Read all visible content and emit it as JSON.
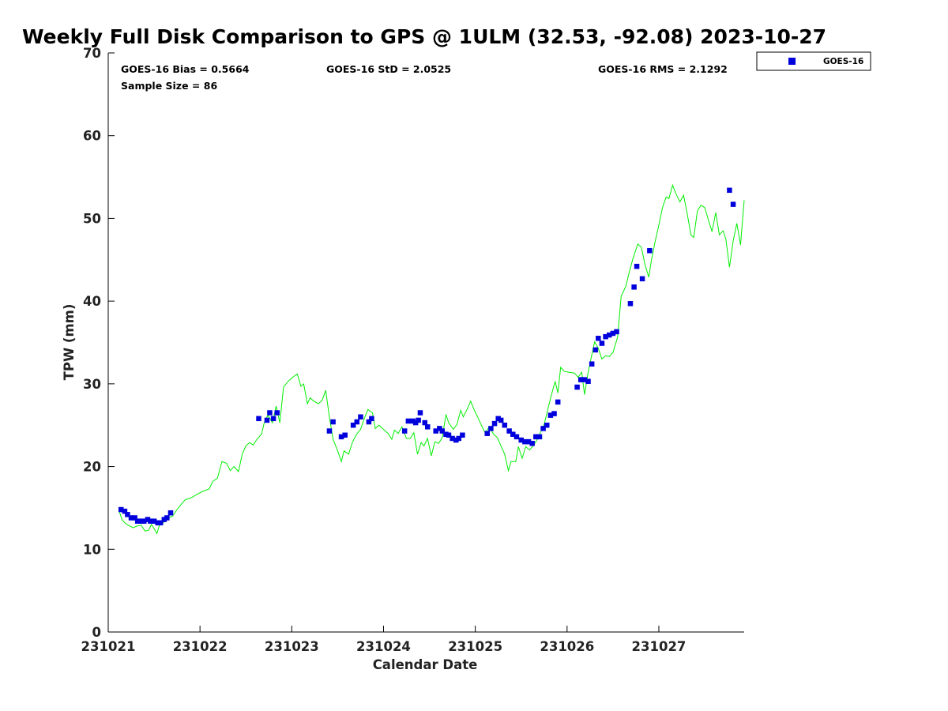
{
  "chart_data": {
    "type": "scatter",
    "title": "Weekly Full Disk Comparison to GPS @ 1ULM (32.53, -92.08) 2023-10-27",
    "xlabel": "Calendar Date",
    "ylabel": "TPW (mm)",
    "xlim": [
      231021.0,
      231027.93
    ],
    "ylim": [
      0,
      70
    ],
    "x_ticks": [
      {
        "value": 231021,
        "label": "231021"
      },
      {
        "value": 231022,
        "label": "231022"
      },
      {
        "value": 231023,
        "label": "231023"
      },
      {
        "value": 231024,
        "label": "231024"
      },
      {
        "value": 231025,
        "label": "231025"
      },
      {
        "value": 231026,
        "label": "231026"
      },
      {
        "value": 231027,
        "label": "231027"
      }
    ],
    "y_ticks": [
      {
        "value": 0,
        "label": "0"
      },
      {
        "value": 10,
        "label": "10"
      },
      {
        "value": 20,
        "label": "20"
      },
      {
        "value": 30,
        "label": "30"
      },
      {
        "value": 40,
        "label": "40"
      },
      {
        "value": 50,
        "label": "50"
      },
      {
        "value": 60,
        "label": "60"
      },
      {
        "value": 70,
        "label": "70"
      }
    ],
    "stats": {
      "bias": "GOES-16 Bias = 0.5664",
      "std": "GOES-16 StD = 2.0525",
      "rms": "GOES-16 RMS = 2.1292",
      "sample_size": "Sample Size = 86"
    },
    "legend": {
      "position": "top-right",
      "entries": [
        {
          "name": "GOES-16",
          "color": "#0000dd",
          "marker": "square"
        }
      ]
    },
    "grid": false,
    "series": [
      {
        "name": "GOES-16",
        "kind": "scatter",
        "color": "#0000dd",
        "points": [
          [
            231021.14,
            14.8
          ],
          [
            231021.18,
            14.6
          ],
          [
            231021.21,
            14.2
          ],
          [
            231021.25,
            13.8
          ],
          [
            231021.29,
            13.8
          ],
          [
            231021.32,
            13.4
          ],
          [
            231021.36,
            13.4
          ],
          [
            231021.39,
            13.4
          ],
          [
            231021.43,
            13.6
          ],
          [
            231021.46,
            13.4
          ],
          [
            231021.5,
            13.4
          ],
          [
            231021.54,
            13.2
          ],
          [
            231021.57,
            13.2
          ],
          [
            231021.61,
            13.6
          ],
          [
            231021.64,
            13.8
          ],
          [
            231021.68,
            14.4
          ],
          [
            231022.64,
            25.8
          ],
          [
            231022.73,
            25.6
          ],
          [
            231022.76,
            26.5
          ],
          [
            231022.8,
            25.8
          ],
          [
            231022.84,
            26.5
          ],
          [
            231023.41,
            24.3
          ],
          [
            231023.45,
            25.4
          ],
          [
            231023.54,
            23.6
          ],
          [
            231023.58,
            23.8
          ],
          [
            231023.67,
            25.0
          ],
          [
            231023.71,
            25.4
          ],
          [
            231023.75,
            26.0
          ],
          [
            231023.84,
            25.4
          ],
          [
            231023.87,
            25.8
          ],
          [
            231024.23,
            24.3
          ],
          [
            231024.27,
            25.5
          ],
          [
            231024.32,
            25.5
          ],
          [
            231024.35,
            25.3
          ],
          [
            231024.38,
            25.6
          ],
          [
            231024.4,
            26.5
          ],
          [
            231024.45,
            25.3
          ],
          [
            231024.48,
            24.8
          ],
          [
            231024.57,
            24.3
          ],
          [
            231024.61,
            24.6
          ],
          [
            231024.64,
            24.3
          ],
          [
            231024.68,
            23.9
          ],
          [
            231024.71,
            23.8
          ],
          [
            231024.75,
            23.4
          ],
          [
            231024.79,
            23.2
          ],
          [
            231024.82,
            23.4
          ],
          [
            231024.86,
            23.8
          ],
          [
            231025.13,
            24.0
          ],
          [
            231025.17,
            24.6
          ],
          [
            231025.21,
            25.2
          ],
          [
            231025.25,
            25.8
          ],
          [
            231025.28,
            25.6
          ],
          [
            231025.32,
            25.0
          ],
          [
            231025.37,
            24.3
          ],
          [
            231025.41,
            23.9
          ],
          [
            231025.45,
            23.6
          ],
          [
            231025.5,
            23.2
          ],
          [
            231025.54,
            23.0
          ],
          [
            231025.58,
            23.0
          ],
          [
            231025.62,
            22.8
          ],
          [
            231025.66,
            23.6
          ],
          [
            231025.7,
            23.6
          ],
          [
            231025.74,
            24.6
          ],
          [
            231025.78,
            25.0
          ],
          [
            231025.82,
            26.2
          ],
          [
            231025.86,
            26.4
          ],
          [
            231025.9,
            27.8
          ],
          [
            231026.11,
            29.6
          ],
          [
            231026.15,
            30.5
          ],
          [
            231026.19,
            30.5
          ],
          [
            231026.23,
            30.3
          ],
          [
            231026.27,
            32.4
          ],
          [
            231026.31,
            34.1
          ],
          [
            231026.34,
            35.5
          ],
          [
            231026.38,
            34.9
          ],
          [
            231026.42,
            35.7
          ],
          [
            231026.46,
            35.9
          ],
          [
            231026.5,
            36.1
          ],
          [
            231026.54,
            36.3
          ],
          [
            231026.69,
            39.7
          ],
          [
            231026.73,
            41.7
          ],
          [
            231026.76,
            44.2
          ],
          [
            231026.82,
            42.7
          ],
          [
            231026.9,
            46.1
          ],
          [
            231027.77,
            53.4
          ],
          [
            231027.81,
            51.7
          ]
        ]
      },
      {
        "name": "GPS",
        "kind": "line",
        "color": "#00ee00",
        "points": [
          [
            231021.12,
            14.6
          ],
          [
            231021.15,
            13.6
          ],
          [
            231021.18,
            13.2
          ],
          [
            231021.22,
            12.9
          ],
          [
            231021.27,
            12.6
          ],
          [
            231021.31,
            12.8
          ],
          [
            231021.36,
            12.9
          ],
          [
            231021.4,
            12.2
          ],
          [
            231021.44,
            12.3
          ],
          [
            231021.47,
            13.0
          ],
          [
            231021.5,
            12.5
          ],
          [
            231021.53,
            11.9
          ],
          [
            231021.56,
            13.0
          ],
          [
            231021.6,
            13.2
          ],
          [
            231021.65,
            13.8
          ],
          [
            231021.7,
            14.0
          ],
          [
            231021.75,
            14.8
          ],
          [
            231021.8,
            15.5
          ],
          [
            231021.84,
            16.0
          ],
          [
            231021.9,
            16.2
          ],
          [
            231021.96,
            16.6
          ],
          [
            231022.03,
            17.0
          ],
          [
            231022.1,
            17.3
          ],
          [
            231022.14,
            18.2
          ],
          [
            231022.19,
            18.6
          ],
          [
            231022.24,
            20.6
          ],
          [
            231022.29,
            20.4
          ],
          [
            231022.33,
            19.5
          ],
          [
            231022.37,
            20.0
          ],
          [
            231022.42,
            19.4
          ],
          [
            231022.46,
            21.5
          ],
          [
            231022.5,
            22.5
          ],
          [
            231022.54,
            22.9
          ],
          [
            231022.58,
            22.6
          ],
          [
            231022.62,
            23.3
          ],
          [
            231022.67,
            23.9
          ],
          [
            231022.7,
            25.3
          ],
          [
            231022.74,
            26.2
          ],
          [
            231022.79,
            25.3
          ],
          [
            231022.83,
            27.3
          ],
          [
            231022.87,
            25.3
          ],
          [
            231022.91,
            29.6
          ],
          [
            231022.96,
            30.3
          ],
          [
            231023.01,
            30.8
          ],
          [
            231023.06,
            31.2
          ],
          [
            231023.1,
            29.7
          ],
          [
            231023.13,
            30.0
          ],
          [
            231023.17,
            27.6
          ],
          [
            231023.2,
            28.3
          ],
          [
            231023.24,
            27.9
          ],
          [
            231023.29,
            27.6
          ],
          [
            231023.33,
            28.0
          ],
          [
            231023.37,
            29.2
          ],
          [
            231023.41,
            26.0
          ],
          [
            231023.45,
            23.3
          ],
          [
            231023.5,
            21.9
          ],
          [
            231023.54,
            20.6
          ],
          [
            231023.57,
            21.9
          ],
          [
            231023.62,
            21.5
          ],
          [
            231023.66,
            22.9
          ],
          [
            231023.7,
            23.8
          ],
          [
            231023.75,
            24.5
          ],
          [
            231023.79,
            25.8
          ],
          [
            231023.83,
            26.9
          ],
          [
            231023.88,
            26.5
          ],
          [
            231023.91,
            24.6
          ],
          [
            231023.95,
            25.0
          ],
          [
            231024.0,
            24.5
          ],
          [
            231024.05,
            24.0
          ],
          [
            231024.09,
            23.3
          ],
          [
            231024.12,
            24.4
          ],
          [
            231024.16,
            24.0
          ],
          [
            231024.2,
            24.8
          ],
          [
            231024.25,
            23.4
          ],
          [
            231024.29,
            23.4
          ],
          [
            231024.33,
            24.1
          ],
          [
            231024.37,
            21.5
          ],
          [
            231024.41,
            22.9
          ],
          [
            231024.44,
            22.5
          ],
          [
            231024.48,
            23.4
          ],
          [
            231024.52,
            21.3
          ],
          [
            231024.56,
            23.0
          ],
          [
            231024.6,
            22.8
          ],
          [
            231024.64,
            23.5
          ],
          [
            231024.68,
            26.3
          ],
          [
            231024.71,
            25.3
          ],
          [
            231024.76,
            24.5
          ],
          [
            231024.8,
            25.1
          ],
          [
            231024.84,
            26.8
          ],
          [
            231024.87,
            26.0
          ],
          [
            231024.91,
            26.9
          ],
          [
            231024.95,
            27.9
          ],
          [
            231024.99,
            26.8
          ],
          [
            231025.03,
            25.9
          ],
          [
            231025.07,
            24.9
          ],
          [
            231025.11,
            24.0
          ],
          [
            231025.15,
            24.8
          ],
          [
            231025.2,
            23.9
          ],
          [
            231025.24,
            23.5
          ],
          [
            231025.28,
            22.5
          ],
          [
            231025.32,
            21.5
          ],
          [
            231025.36,
            19.5
          ],
          [
            231025.39,
            20.6
          ],
          [
            231025.44,
            20.6
          ],
          [
            231025.47,
            22.4
          ],
          [
            231025.51,
            21.0
          ],
          [
            231025.55,
            22.4
          ],
          [
            231025.59,
            22.0
          ],
          [
            231025.63,
            22.5
          ],
          [
            231025.67,
            23.2
          ],
          [
            231025.71,
            24.1
          ],
          [
            231025.75,
            25.1
          ],
          [
            231025.79,
            26.9
          ],
          [
            231025.83,
            28.7
          ],
          [
            231025.87,
            30.3
          ],
          [
            231025.9,
            28.9
          ],
          [
            231025.93,
            32.0
          ],
          [
            231025.97,
            31.5
          ],
          [
            231026.02,
            31.4
          ],
          [
            231026.08,
            31.3
          ],
          [
            231026.12,
            30.8
          ],
          [
            231026.16,
            31.4
          ],
          [
            231026.19,
            28.7
          ],
          [
            231026.23,
            31.4
          ],
          [
            231026.26,
            33.0
          ],
          [
            231026.3,
            35.1
          ],
          [
            231026.34,
            34.3
          ],
          [
            231026.38,
            33.0
          ],
          [
            231026.42,
            33.4
          ],
          [
            231026.46,
            33.3
          ],
          [
            231026.5,
            33.8
          ],
          [
            231026.55,
            35.6
          ],
          [
            231026.59,
            40.6
          ],
          [
            231026.64,
            41.8
          ],
          [
            231026.68,
            43.6
          ],
          [
            231026.72,
            45.2
          ],
          [
            231026.77,
            46.9
          ],
          [
            231026.81,
            46.5
          ],
          [
            231026.85,
            44.4
          ],
          [
            231026.89,
            42.9
          ],
          [
            231026.92,
            45.0
          ],
          [
            231026.96,
            47.2
          ],
          [
            231027.0,
            49.2
          ],
          [
            231027.04,
            51.3
          ],
          [
            231027.08,
            52.6
          ],
          [
            231027.11,
            52.4
          ],
          [
            231027.15,
            54.0
          ],
          [
            231027.19,
            52.9
          ],
          [
            231027.23,
            52.0
          ],
          [
            231027.27,
            52.8
          ],
          [
            231027.31,
            50.5
          ],
          [
            231027.35,
            48.0
          ],
          [
            231027.38,
            47.7
          ],
          [
            231027.42,
            50.9
          ],
          [
            231027.46,
            51.6
          ],
          [
            231027.5,
            51.3
          ],
          [
            231027.54,
            49.8
          ],
          [
            231027.58,
            48.4
          ],
          [
            231027.62,
            50.7
          ],
          [
            231027.66,
            48.0
          ],
          [
            231027.7,
            48.5
          ],
          [
            231027.73,
            47.5
          ],
          [
            231027.77,
            44.1
          ],
          [
            231027.81,
            47.3
          ],
          [
            231027.85,
            49.4
          ],
          [
            231027.89,
            46.8
          ],
          [
            231027.93,
            52.2
          ]
        ]
      }
    ]
  }
}
